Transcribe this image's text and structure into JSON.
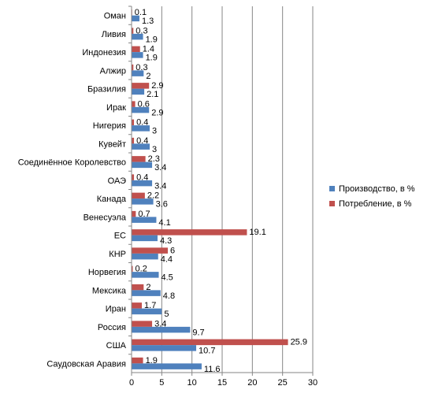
{
  "chart_data": {
    "type": "bar",
    "orientation": "horizontal",
    "title": "",
    "xlabel": "",
    "ylabel": "",
    "xlim": [
      0,
      30
    ],
    "xticks": [
      0,
      5,
      10,
      15,
      20,
      25,
      30
    ],
    "grid": "vertical",
    "legend_position": "right",
    "categories": [
      "Оман",
      "Ливия",
      "Индонезия",
      "Алжир",
      "Бразилия",
      "Ирак",
      "Нигерия",
      "Кувейт",
      "Соединённое Королевство",
      "ОАЭ",
      "Канада",
      "Венесуэла",
      "ЕС",
      "КНР",
      "Норвегия",
      "Мексика",
      "Иран",
      "Россия",
      "США",
      "Саудовская Аравия"
    ],
    "series": [
      {
        "name": "Производство, в %",
        "color": "#4f81bd",
        "values": [
          1.3,
          1.9,
          1.9,
          2,
          2.1,
          2.9,
          3,
          3,
          3.4,
          3.4,
          3.6,
          4.1,
          4.3,
          4.4,
          4.5,
          4.8,
          5,
          9.7,
          10.7,
          11.6
        ]
      },
      {
        "name": "Потребление, в  %",
        "color": "#c0504d",
        "values": [
          0.1,
          0.3,
          1.4,
          0.3,
          2.9,
          0.6,
          0.4,
          0.4,
          2.3,
          0.4,
          2.2,
          0.7,
          19.1,
          6,
          0.2,
          2,
          1.7,
          3.4,
          25.9,
          1.9
        ]
      }
    ]
  }
}
